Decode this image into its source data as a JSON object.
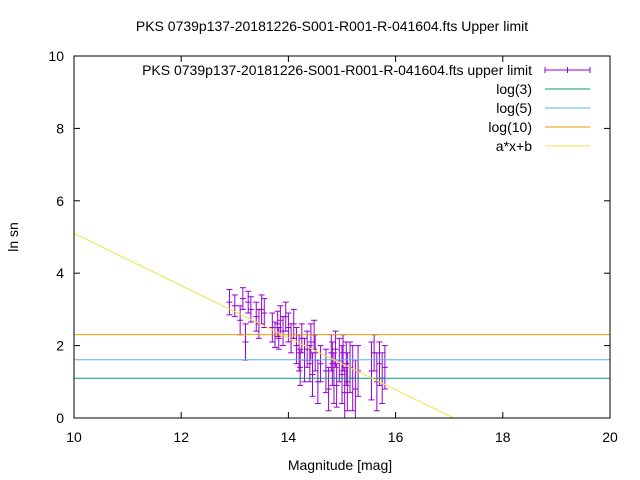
{
  "chart_data": {
    "type": "scatter",
    "title": "PKS 0739p137-20181226-S001-R001-R-041604.fts Upper limit",
    "xlabel": "Magnitude [mag]",
    "ylabel": "ln sn",
    "xlim": [
      10,
      20
    ],
    "ylim": [
      0,
      10
    ],
    "x_ticks": [
      "10",
      "12",
      "14",
      "16",
      "18",
      "20"
    ],
    "y_ticks": [
      "0",
      "2",
      "4",
      "6",
      "8",
      "10"
    ],
    "grid": false,
    "legend_position": "top-right",
    "colors": {
      "points": "#9400d3",
      "log3": "#009e73",
      "log5": "#56b4e9",
      "log10": "#e69f00",
      "fit": "#f0e442"
    },
    "series": [
      {
        "name": "PKS 0739p137-20181226-S001-R001-R-041604.fts upper limit",
        "kind": "errorbars",
        "points": [
          [
            12.9,
            3.2,
            0.35
          ],
          [
            13.0,
            3.1,
            0.3
          ],
          [
            13.1,
            2.7,
            0.4
          ],
          [
            13.15,
            3.3,
            0.3
          ],
          [
            13.2,
            2.1,
            0.5
          ],
          [
            13.25,
            3.2,
            0.3
          ],
          [
            13.3,
            3.0,
            0.35
          ],
          [
            13.4,
            2.8,
            0.4
          ],
          [
            13.45,
            2.6,
            0.4
          ],
          [
            13.5,
            3.0,
            0.4
          ],
          [
            13.55,
            2.9,
            0.4
          ],
          [
            13.7,
            2.5,
            0.4
          ],
          [
            13.75,
            2.3,
            0.35
          ],
          [
            13.8,
            2.6,
            0.35
          ],
          [
            13.82,
            2.2,
            0.3
          ],
          [
            13.85,
            2.7,
            0.4
          ],
          [
            13.9,
            2.4,
            0.4
          ],
          [
            13.95,
            2.8,
            0.4
          ],
          [
            14.0,
            2.5,
            0.4
          ],
          [
            14.05,
            2.2,
            0.4
          ],
          [
            14.1,
            2.6,
            0.4
          ],
          [
            14.15,
            2.0,
            0.5
          ],
          [
            14.2,
            1.8,
            0.5
          ],
          [
            14.22,
            1.4,
            0.5
          ],
          [
            14.25,
            2.2,
            0.4
          ],
          [
            14.3,
            1.6,
            0.6
          ],
          [
            14.35,
            1.9,
            0.5
          ],
          [
            14.4,
            1.5,
            0.5
          ],
          [
            14.42,
            2.1,
            0.5
          ],
          [
            14.45,
            1.2,
            0.6
          ],
          [
            14.48,
            2.3,
            0.4
          ],
          [
            14.5,
            1.8,
            0.5
          ],
          [
            14.55,
            1.0,
            0.6
          ],
          [
            14.6,
            1.5,
            0.5
          ],
          [
            14.7,
            1.3,
            0.6
          ],
          [
            14.75,
            0.8,
            0.6
          ],
          [
            14.8,
            1.8,
            0.5
          ],
          [
            14.82,
            1.5,
            0.6
          ],
          [
            14.85,
            1.1,
            0.7
          ],
          [
            14.88,
            1.9,
            0.5
          ],
          [
            14.9,
            0.9,
            0.6
          ],
          [
            14.95,
            1.6,
            0.6
          ],
          [
            15.0,
            1.2,
            0.8
          ],
          [
            15.02,
            1.8,
            0.5
          ],
          [
            15.05,
            0.7,
            0.7
          ],
          [
            15.08,
            1.5,
            0.6
          ],
          [
            15.1,
            1.0,
            0.8
          ],
          [
            15.15,
            1.4,
            0.7
          ],
          [
            15.2,
            1.1,
            0.9
          ],
          [
            15.25,
            0.8,
            0.8
          ],
          [
            15.3,
            1.3,
            0.7
          ],
          [
            15.55,
            1.3,
            0.8
          ],
          [
            15.6,
            1.8,
            0.5
          ],
          [
            15.65,
            1.0,
            0.8
          ],
          [
            15.7,
            1.5,
            0.6
          ],
          [
            15.75,
            1.1,
            0.7
          ],
          [
            15.8,
            1.4,
            0.6
          ]
        ]
      },
      {
        "name": "log(3)",
        "kind": "hline",
        "y": 1.0986
      },
      {
        "name": "log(5)",
        "kind": "hline",
        "y": 1.6094
      },
      {
        "name": "log(10)",
        "kind": "hline",
        "y": 2.3026
      },
      {
        "name": "a*x+b",
        "kind": "line",
        "a": -0.72,
        "b": 12.3
      }
    ]
  }
}
